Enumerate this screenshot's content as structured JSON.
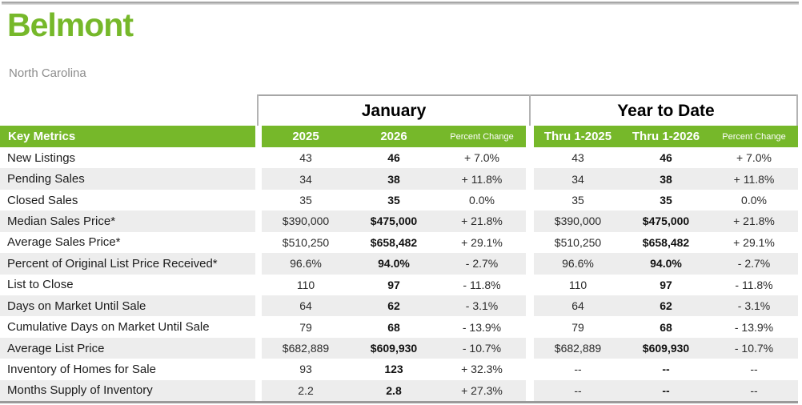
{
  "page": {
    "title": "Belmont",
    "subtitle": "North Carolina"
  },
  "table": {
    "key_metrics_label": "Key Metrics",
    "groups": {
      "january": "January",
      "ytd": "Year to Date"
    },
    "columns": {
      "jan_2025": "2025",
      "jan_2026": "2026",
      "jan_pct": "Percent Change",
      "ytd_2025": "Thru 1-2025",
      "ytd_2026": "Thru 1-2026",
      "ytd_pct": "Percent Change"
    },
    "rows": [
      {
        "metric": "New Listings",
        "jan_2025": "43",
        "jan_2026": "46",
        "jan_pct": "+ 7.0%",
        "ytd_2025": "43",
        "ytd_2026": "46",
        "ytd_pct": "+ 7.0%"
      },
      {
        "metric": "Pending Sales",
        "jan_2025": "34",
        "jan_2026": "38",
        "jan_pct": "+ 11.8%",
        "ytd_2025": "34",
        "ytd_2026": "38",
        "ytd_pct": "+ 11.8%"
      },
      {
        "metric": "Closed Sales",
        "jan_2025": "35",
        "jan_2026": "35",
        "jan_pct": "0.0%",
        "ytd_2025": "35",
        "ytd_2026": "35",
        "ytd_pct": "0.0%"
      },
      {
        "metric": "Median Sales Price*",
        "jan_2025": "$390,000",
        "jan_2026": "$475,000",
        "jan_pct": "+ 21.8%",
        "ytd_2025": "$390,000",
        "ytd_2026": "$475,000",
        "ytd_pct": "+ 21.8%"
      },
      {
        "metric": "Average Sales Price*",
        "jan_2025": "$510,250",
        "jan_2026": "$658,482",
        "jan_pct": "+ 29.1%",
        "ytd_2025": "$510,250",
        "ytd_2026": "$658,482",
        "ytd_pct": "+ 29.1%"
      },
      {
        "metric": "Percent of Original List Price Received*",
        "jan_2025": "96.6%",
        "jan_2026": "94.0%",
        "jan_pct": "- 2.7%",
        "ytd_2025": "96.6%",
        "ytd_2026": "94.0%",
        "ytd_pct": "- 2.7%"
      },
      {
        "metric": "List to Close",
        "jan_2025": "110",
        "jan_2026": "97",
        "jan_pct": "- 11.8%",
        "ytd_2025": "110",
        "ytd_2026": "97",
        "ytd_pct": "- 11.8%"
      },
      {
        "metric": "Days on Market Until Sale",
        "jan_2025": "64",
        "jan_2026": "62",
        "jan_pct": "- 3.1%",
        "ytd_2025": "64",
        "ytd_2026": "62",
        "ytd_pct": "- 3.1%"
      },
      {
        "metric": "Cumulative Days on Market Until Sale",
        "jan_2025": "79",
        "jan_2026": "68",
        "jan_pct": "- 13.9%",
        "ytd_2025": "79",
        "ytd_2026": "68",
        "ytd_pct": "- 13.9%"
      },
      {
        "metric": "Average List Price",
        "jan_2025": "$682,889",
        "jan_2026": "$609,930",
        "jan_pct": "- 10.7%",
        "ytd_2025": "$682,889",
        "ytd_2026": "$609,930",
        "ytd_pct": "- 10.7%"
      },
      {
        "metric": "Inventory of Homes for Sale",
        "jan_2025": "93",
        "jan_2026": "123",
        "jan_pct": "+ 32.3%",
        "ytd_2025": "--",
        "ytd_2026": "--",
        "ytd_pct": "--"
      },
      {
        "metric": "Months Supply of Inventory",
        "jan_2025": "2.2",
        "jan_2026": "2.8",
        "jan_pct": "+ 27.3%",
        "ytd_2025": "--",
        "ytd_2026": "--",
        "ytd_pct": "--"
      }
    ]
  },
  "colors": {
    "accent_green": "#76b82a",
    "alt_row_gray": "#ededed",
    "subtitle_gray": "#8c8c8c",
    "border_gray": "#a6a6a6"
  }
}
